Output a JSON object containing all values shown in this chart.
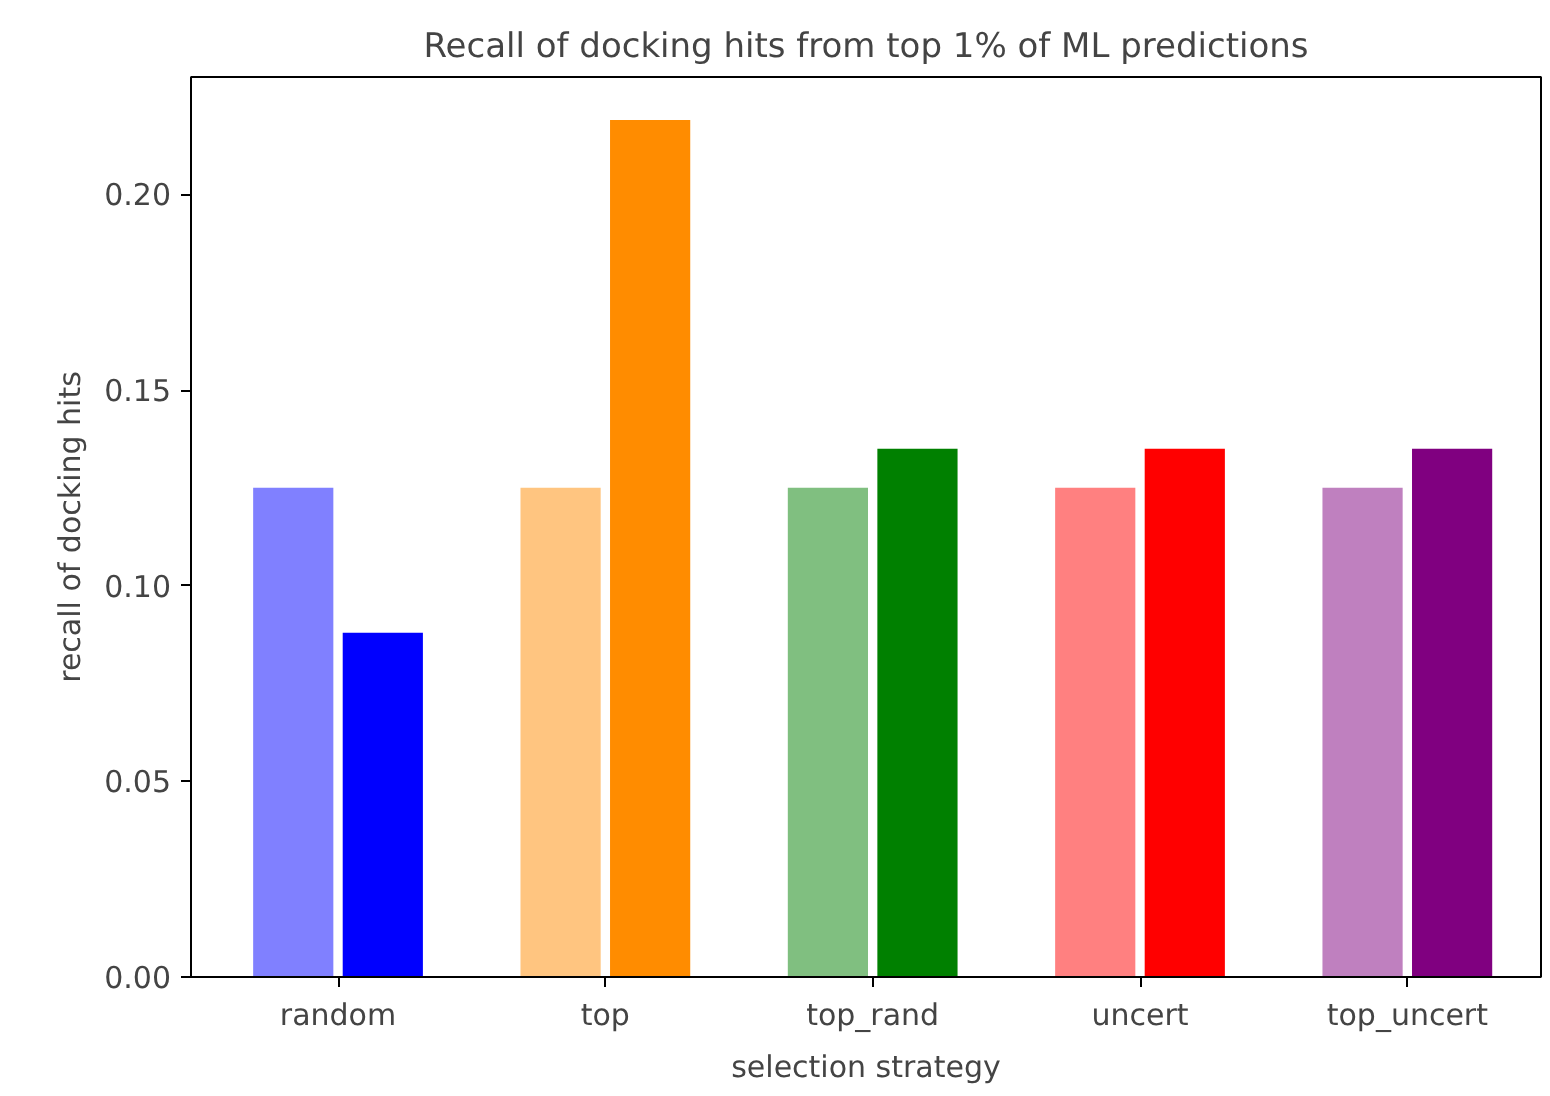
{
  "chart_data": {
    "type": "bar",
    "title": "Recall of docking hits from top 1% of ML predictions",
    "xlabel": "selection strategy",
    "ylabel": "recall of docking hits",
    "categories": [
      "random",
      "top",
      "top_rand",
      "uncert",
      "top_uncert"
    ],
    "series": [
      {
        "colors": [
          "#8080ff",
          "#ffc580",
          "#80bf80",
          "#ff8080",
          "#bf80bf"
        ],
        "values": [
          0.125,
          0.125,
          0.125,
          0.125,
          0.125
        ]
      },
      {
        "colors": [
          "#0000ff",
          "#ff8c00",
          "#008000",
          "#ff0000",
          "#800080"
        ],
        "values": [
          0.088,
          0.219,
          0.135,
          0.135,
          0.135
        ]
      }
    ],
    "ylim": [
      0,
      0.23
    ],
    "yticks": [
      {
        "value": 0,
        "label": "0.00"
      },
      {
        "value": 0.05,
        "label": "0.05"
      },
      {
        "value": 0.1,
        "label": "0.10"
      },
      {
        "value": 0.15,
        "label": "0.15"
      },
      {
        "value": 0.2,
        "label": "0.20"
      }
    ],
    "grid": false
  }
}
